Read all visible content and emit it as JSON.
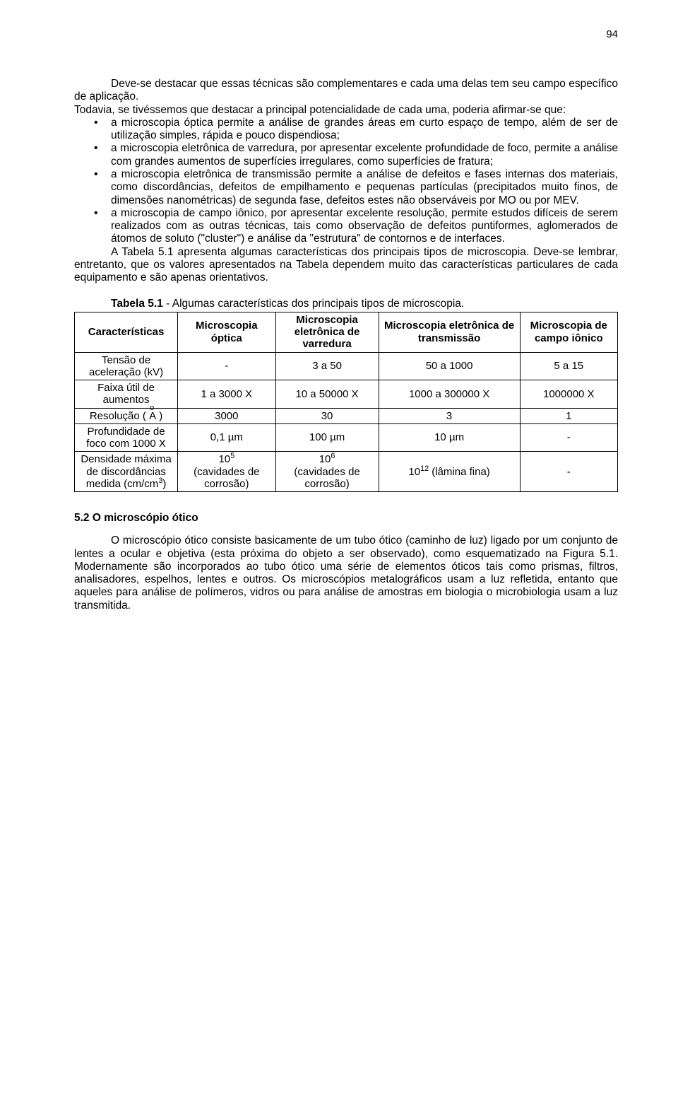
{
  "page_number": "94",
  "intro_para": "Deve-se destacar que essas técnicas são complementares e cada uma delas tem seu campo específico de aplicação.",
  "lead_in": "Todavia, se tivéssemos que destacar a principal potencialidade de cada uma, poderia afirmar-se que:",
  "bullets": [
    "a microscopia óptica permite a análise de grandes áreas em curto espaço de tempo, além de ser de utilização simples, rápida e pouco dispendiosa;",
    "a microscopia eletrônica de varredura, por apresentar excelente profundidade de foco, permite a análise com grandes aumentos de superfícies irregulares, como superfícies de fratura;",
    "a microscopia eletrônica de transmissão permite a análise de defeitos e fases internas dos materiais, como discordâncias, defeitos de empilhamento e pequenas partículas (precipitados muito finos, de dimensões nanométricas) de segunda fase, defeitos estes  não observáveis por MO ou por MEV.",
    "a microscopia de campo iônico, por apresentar excelente resolução, permite estudos difíceis de serem realizados com as outras técnicas, tais como observação de defeitos puntiformes, aglomerados de átomos de soluto (\"cluster\") e análise da \"estrutura\" de contornos e de interfaces."
  ],
  "tabela_ref_para": "A Tabela 5.1 apresenta algumas características dos principais tipos de microscopia. Deve-se lembrar, entretanto, que os valores apresentados na Tabela dependem muito das características particulares de cada equipamento e são apenas orientativos.",
  "table": {
    "caption_bold": "Tabela 5.1",
    "caption_rest": " - Algumas características dos principais tipos de microscopia.",
    "columns": [
      "Características",
      "Microscopia óptica",
      "Microscopia eletrônica de varredura",
      "Microscopia eletrônica de transmissão",
      "Microscopia de campo iônico"
    ],
    "col_widths": [
      "19%",
      "18%",
      "19%",
      "26%",
      "18%"
    ],
    "rows": [
      {
        "label": "Tensão de aceleração (kV)",
        "cells": [
          "-",
          "3 a 50",
          "50 a 1000",
          "5 a 15"
        ]
      },
      {
        "label": "Faixa útil de aumentos",
        "cells": [
          "1 a 3000 X",
          "10 a 50000 X",
          "1000 a 300000 X",
          "1000000 X"
        ]
      },
      {
        "label_html": "Resolução ( <span class=\"angstrom\">A<span class=\"ring\">o</span></span> )",
        "cells": [
          "3000",
          "30",
          "3",
          "1"
        ]
      },
      {
        "label": "Profundidade de foco com 1000 X",
        "cells": [
          "0,1 µm",
          "100 µm",
          "10 µm",
          "-"
        ]
      },
      {
        "label_html": "Densidade máxima de discordâncias medida (cm/cm<sup>3</sup>)",
        "cells_html": [
          "10<sup>5</sup><br>(cavidades de corrosão)",
          "10<sup>6</sup><br>(cavidades de corrosão)",
          "10<sup>12</sup> (lâmina fina)",
          "-"
        ]
      }
    ]
  },
  "section_heading": "5.2 O microscópio ótico",
  "section_para": "O microscópio ótico consiste basicamente de um tubo ótico (caminho de luz) ligado por um conjunto de lentes a ocular e objetiva (esta próxima do objeto a ser observado), como esquematizado na Figura 5.1. Modernamente são incorporados ao tubo ótico uma série de elementos óticos tais como prismas, filtros, analisadores, espelhos, lentes e outros. Os microscópios metalográficos usam a luz refletida, entanto que aqueles para análise de polímeros, vidros ou para análise de amostras em biologia o microbiologia usam a luz transmitida."
}
